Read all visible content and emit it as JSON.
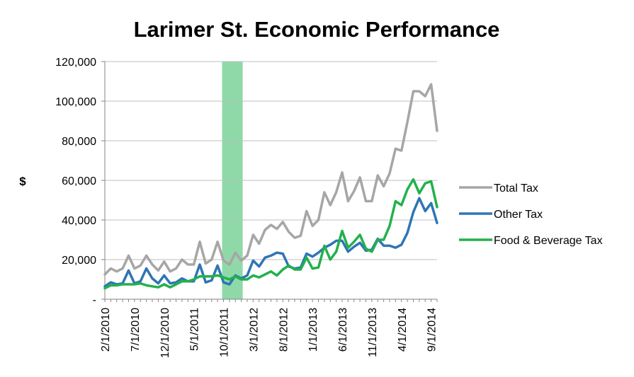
{
  "chart_data": {
    "type": "line",
    "title": "Larimer St. Economic Performance",
    "xlabel": "",
    "ylabel": "$",
    "ylim": [
      0,
      120000
    ],
    "yticks": [
      {
        "value": 0,
        "label": "-"
      },
      {
        "value": 20000,
        "label": "20,000"
      },
      {
        "value": 40000,
        "label": "40,000"
      },
      {
        "value": 60000,
        "label": "60,000"
      },
      {
        "value": 80000,
        "label": "80,000"
      },
      {
        "value": 100000,
        "label": "100,000"
      },
      {
        "value": 120000,
        "label": "120,000"
      }
    ],
    "xticks": [
      {
        "index": 0,
        "label": "2/1/2010"
      },
      {
        "index": 5,
        "label": "7/1/2010"
      },
      {
        "index": 10,
        "label": "12/1/2010"
      },
      {
        "index": 15,
        "label": "5/1/2011"
      },
      {
        "index": 20,
        "label": "10/1/2011"
      },
      {
        "index": 25,
        "label": "3/1/2012"
      },
      {
        "index": 30,
        "label": "8/1/2012"
      },
      {
        "index": 35,
        "label": "1/1/2013"
      },
      {
        "index": 40,
        "label": "6/1/2013"
      },
      {
        "index": 45,
        "label": "11/1/2013"
      },
      {
        "index": 50,
        "label": "4/1/2014"
      },
      {
        "index": 55,
        "label": "9/1/2014"
      }
    ],
    "x_start": "2/1/2010",
    "x_end": "10/1/2014",
    "grid": "horizontal",
    "legend_position": "right",
    "highlight_band": {
      "from": "10/1/2011",
      "to": "1/1/2012",
      "color": "#8fd9a8"
    },
    "series": [
      {
        "name": "Total Tax",
        "color": "#a6a6a6",
        "values": [
          12500,
          15500,
          14000,
          15500,
          22000,
          15500,
          17000,
          22000,
          17500,
          14500,
          19000,
          14000,
          15500,
          20000,
          17500,
          17500,
          29000,
          18000,
          20000,
          29000,
          19500,
          17500,
          23500,
          19500,
          22000,
          32500,
          28000,
          35000,
          37500,
          35500,
          39000,
          34000,
          31000,
          32000,
          44500,
          37000,
          40000,
          54000,
          47500,
          54000,
          64000,
          49500,
          54500,
          61500,
          49500,
          49500,
          62500,
          57000,
          63500,
          76000,
          75000,
          89500,
          105000,
          105000,
          102500,
          108500,
          85000
        ]
      },
      {
        "name": "Other Tax",
        "color": "#2e75b6",
        "values": [
          6500,
          8500,
          7500,
          8000,
          14500,
          8000,
          9000,
          15500,
          10500,
          8000,
          12000,
          8000,
          8500,
          10500,
          9000,
          9000,
          17500,
          8500,
          9500,
          17000,
          8500,
          7500,
          12000,
          10500,
          12000,
          19500,
          16500,
          21000,
          22000,
          23500,
          23000,
          16500,
          15500,
          16000,
          23000,
          21500,
          23500,
          26000,
          27500,
          29500,
          29500,
          24000,
          26500,
          28500,
          24500,
          25000,
          30500,
          27000,
          27000,
          26000,
          27500,
          33500,
          44000,
          51000,
          44500,
          48500,
          38500
        ]
      },
      {
        "name": "Food & Beverage Tax",
        "color": "#22b14c",
        "values": [
          5500,
          7000,
          7000,
          7500,
          7500,
          7500,
          8000,
          7000,
          6500,
          6000,
          7500,
          6000,
          7500,
          9000,
          9000,
          10000,
          11500,
          11500,
          11500,
          12000,
          11000,
          10000,
          11500,
          10000,
          10000,
          12000,
          11000,
          12500,
          14000,
          12000,
          15000,
          17000,
          15000,
          15000,
          21000,
          15500,
          16000,
          27000,
          20000,
          24000,
          34500,
          26000,
          29000,
          32500,
          25500,
          24000,
          30000,
          30000,
          37000,
          49500,
          47500,
          55500,
          60500,
          53500,
          58500,
          59500,
          46500
        ]
      }
    ]
  }
}
